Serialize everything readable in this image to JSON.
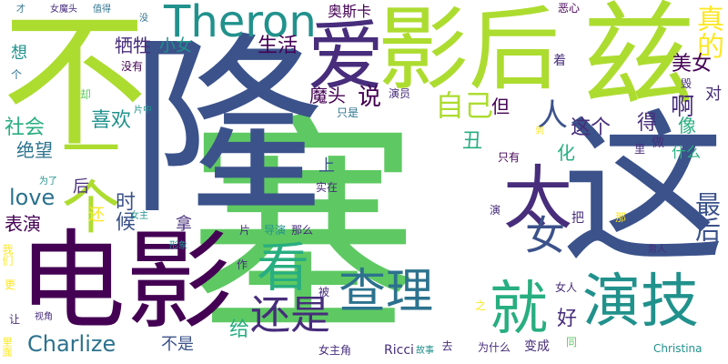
{
  "colors": {
    "background": "#ffffff",
    "palette": [
      "#440154",
      "#472d7b",
      "#3b528b",
      "#2c728e",
      "#21918c",
      "#28ae80",
      "#5ec962",
      "#addc30",
      "#fde725"
    ]
  },
  "words": [
    {
      "text": "塞",
      "color": "#5ec962"
    },
    {
      "text": "隆",
      "color": "#3b528b"
    },
    {
      "text": "这",
      "color": "#3b528b"
    },
    {
      "text": "不",
      "color": "#addc30"
    },
    {
      "text": "电影",
      "color": "#440154"
    },
    {
      "text": "影后",
      "color": "#addc30"
    },
    {
      "text": "兹",
      "color": "#addc30"
    },
    {
      "text": "一个",
      "color": "#addc30"
    },
    {
      "text": "爱",
      "color": "#472d7b"
    },
    {
      "text": "Theron",
      "color": "#21918c"
    },
    {
      "text": "太",
      "color": "#472d7b"
    },
    {
      "text": "看",
      "color": "#28ae80"
    },
    {
      "text": "查理",
      "color": "#2c728e"
    },
    {
      "text": "就",
      "color": "#28ae80"
    },
    {
      "text": "演技",
      "color": "#21918c"
    },
    {
      "text": "还是",
      "color": "#472d7b"
    },
    {
      "text": "女",
      "color": "#3b528b"
    },
    {
      "text": "人",
      "color": "#3b528b"
    },
    {
      "text": "自己",
      "color": "#addc30"
    },
    {
      "text": "真的",
      "color": "#fde725"
    },
    {
      "text": "最后",
      "color": "#3b528b"
    },
    {
      "text": "美女",
      "color": "#440154"
    },
    {
      "text": "Charlize",
      "color": "#2c728e"
    },
    {
      "text": "love",
      "color": "#2c728e"
    },
    {
      "text": "社会",
      "color": "#28ae80"
    },
    {
      "text": "喜欢",
      "color": "#21918c"
    },
    {
      "text": "时候",
      "color": "#3b528b"
    },
    {
      "text": "牺牲",
      "color": "#472d7b"
    },
    {
      "text": "生活",
      "color": "#440154"
    },
    {
      "text": "小女",
      "color": "#21918c"
    },
    {
      "text": "魔头",
      "color": "#440154"
    },
    {
      "text": "说",
      "color": "#440154"
    },
    {
      "text": "这个",
      "color": "#472d7b"
    },
    {
      "text": "啊",
      "color": "#472d7b"
    },
    {
      "text": "得",
      "color": "#472d7b"
    },
    {
      "text": "但",
      "color": "#440154"
    },
    {
      "text": "丑",
      "color": "#28ae80"
    },
    {
      "text": "好",
      "color": "#472d7b"
    },
    {
      "text": "化",
      "color": "#28ae80"
    },
    {
      "text": "像",
      "color": "#28ae80"
    },
    {
      "text": "对",
      "color": "#472d7b"
    },
    {
      "text": "绝望",
      "color": "#2c728e"
    },
    {
      "text": "表演",
      "color": "#440154"
    },
    {
      "text": "给",
      "color": "#28ae80"
    },
    {
      "text": "不是",
      "color": "#3b528b"
    },
    {
      "text": "后",
      "color": "#472d7b"
    },
    {
      "text": "还",
      "color": "#fde725"
    },
    {
      "text": "拿",
      "color": "#472d7b"
    },
    {
      "text": "上",
      "color": "#3b528b"
    },
    {
      "text": "想",
      "color": "#21918c"
    },
    {
      "text": "个",
      "color": "#2c728e"
    },
    {
      "text": "没有",
      "color": "#440154"
    },
    {
      "text": "女魔头",
      "color": "#472d7b"
    },
    {
      "text": "值得",
      "color": "#2c728e"
    },
    {
      "text": "才",
      "color": "#2c728e"
    },
    {
      "text": "没",
      "color": "#2c728e"
    },
    {
      "text": "奥斯卡",
      "color": "#440154"
    },
    {
      "text": "恶心",
      "color": "#440154"
    },
    {
      "text": "着",
      "color": "#472d7b"
    },
    {
      "text": "毁",
      "color": "#472d7b"
    },
    {
      "text": "只是",
      "color": "#2c728e"
    },
    {
      "text": "演员",
      "color": "#472d7b"
    },
    {
      "text": "什么",
      "color": "#28ae80"
    },
    {
      "text": "做",
      "color": "#472d7b"
    },
    {
      "text": "里",
      "color": "#472d7b"
    },
    {
      "text": "一样",
      "color": "#5ec962"
    },
    {
      "text": "实在",
      "color": "#472d7b"
    },
    {
      "text": "只有",
      "color": "#440154"
    },
    {
      "text": "片中",
      "color": "#21918c"
    },
    {
      "text": "为了",
      "color": "#21918c"
    },
    {
      "text": "女主",
      "color": "#21918c"
    },
    {
      "text": "形象",
      "color": "#21918c"
    },
    {
      "text": "导演",
      "color": "#21918c"
    },
    {
      "text": "那么",
      "color": "#472d7b"
    },
    {
      "text": "片",
      "color": "#472d7b"
    },
    {
      "text": "把",
      "color": "#472d7b"
    },
    {
      "text": "那",
      "color": "#fde725"
    },
    {
      "text": "演",
      "color": "#472d7b"
    },
    {
      "text": "男人",
      "color": "#472d7b"
    },
    {
      "text": "女人",
      "color": "#472d7b"
    },
    {
      "text": "被",
      "color": "#472d7b"
    },
    {
      "text": "之",
      "color": "#fde725"
    },
    {
      "text": "作",
      "color": "#472d7b"
    },
    {
      "text": "我们",
      "color": "#fde725"
    },
    {
      "text": "更",
      "color": "#fde725"
    },
    {
      "text": "让",
      "color": "#472d7b"
    },
    {
      "text": "视角",
      "color": "#472d7b"
    },
    {
      "text": "里面",
      "color": "#fde725"
    },
    {
      "text": "女主角",
      "color": "#472d7b"
    },
    {
      "text": "Ricci",
      "color": "#472d7b"
    },
    {
      "text": "故事",
      "color": "#21918c"
    },
    {
      "text": "去",
      "color": "#472d7b"
    },
    {
      "text": "为什么",
      "color": "#472d7b"
    },
    {
      "text": "变成",
      "color": "#472d7b"
    },
    {
      "text": "同",
      "color": "#5ec962"
    },
    {
      "text": "Christina",
      "color": "#21918c"
    },
    {
      "text": "到",
      "color": "#fde725"
    },
    {
      "text": "却",
      "color": "#5ec962"
    }
  ]
}
